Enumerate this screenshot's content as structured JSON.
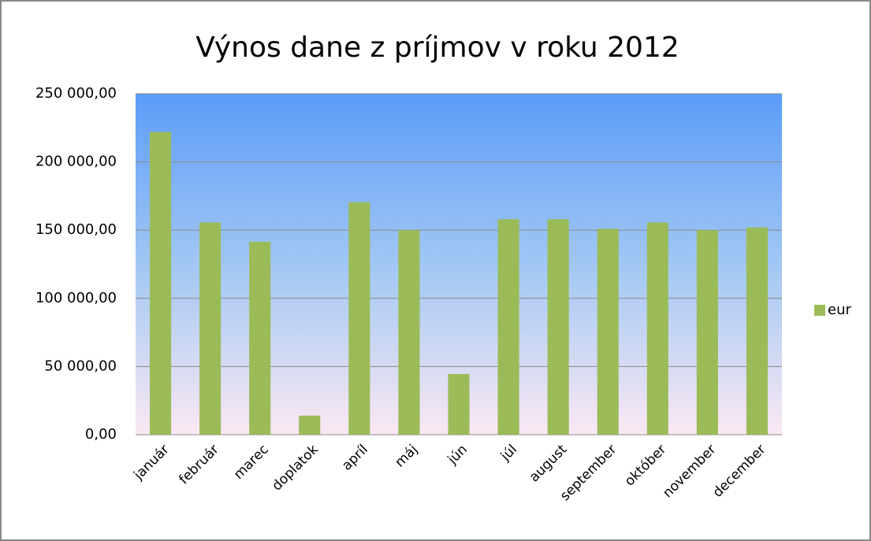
{
  "chart_data": {
    "type": "bar",
    "title": "Výnos dane z príjmov v roku 2012",
    "categories": [
      "január",
      "február",
      "marec",
      "doplatok",
      "apríl",
      "máj",
      "jún",
      "júl",
      "august",
      "september",
      "október",
      "november",
      "december"
    ],
    "series": [
      {
        "name": "eur",
        "color": "#9bbb59",
        "values": [
          222000,
          155500,
          141500,
          14000,
          170500,
          150000,
          44500,
          158000,
          158000,
          151000,
          155500,
          150000,
          152000
        ]
      }
    ],
    "ylim": [
      0,
      250000
    ],
    "yticks": [
      {
        "value": 0,
        "label": "0,00"
      },
      {
        "value": 50000,
        "label": "50 000,00"
      },
      {
        "value": 100000,
        "label": "100 000,00"
      },
      {
        "value": 150000,
        "label": "150 000,00"
      },
      {
        "value": 200000,
        "label": "200 000,00"
      },
      {
        "value": 250000,
        "label": "250 000,00"
      }
    ],
    "grid": true,
    "legend": "right"
  }
}
